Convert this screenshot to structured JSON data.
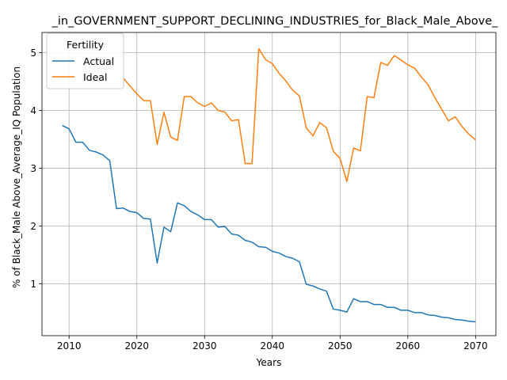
{
  "chart_data": {
    "type": "line",
    "title": "_in_GOVERNMENT_SUPPORT_DECLINING_INDUSTRIES_for_Black_Male_Above_",
    "xlabel": "Years",
    "ylabel": "% of Black_Male Above_Average_IQ Population",
    "xlim": [
      2006,
      2073
    ],
    "ylim": [
      0.1,
      5.35
    ],
    "xticks": [
      2010,
      2020,
      2030,
      2040,
      2050,
      2060,
      2070
    ],
    "yticks": [
      1,
      2,
      3,
      4,
      5
    ],
    "grid": true,
    "legend": {
      "title": "Fertility",
      "placement": "top-left"
    },
    "x": [
      2009,
      2010,
      2011,
      2012,
      2013,
      2014,
      2015,
      2016,
      2017,
      2018,
      2019,
      2020,
      2021,
      2022,
      2023,
      2024,
      2025,
      2026,
      2027,
      2028,
      2029,
      2030,
      2031,
      2032,
      2033,
      2034,
      2035,
      2036,
      2037,
      2038,
      2039,
      2040,
      2041,
      2042,
      2043,
      2044,
      2045,
      2046,
      2047,
      2048,
      2049,
      2050,
      2051,
      2052,
      2053,
      2054,
      2055,
      2056,
      2057,
      2058,
      2059,
      2060,
      2061,
      2062,
      2063,
      2064,
      2065,
      2066,
      2067,
      2068,
      2069,
      2070
    ],
    "series": [
      {
        "name": "Actual",
        "color": "#1f77b4",
        "values": [
          3.74,
          3.68,
          3.45,
          3.45,
          3.31,
          3.28,
          3.23,
          3.13,
          2.3,
          2.31,
          2.25,
          2.23,
          2.13,
          2.12,
          1.36,
          1.98,
          1.9,
          2.4,
          2.35,
          2.25,
          2.19,
          2.11,
          2.11,
          1.98,
          1.99,
          1.86,
          1.84,
          1.75,
          1.72,
          1.64,
          1.63,
          1.56,
          1.53,
          1.47,
          1.44,
          1.38,
          0.99,
          0.96,
          0.91,
          0.87,
          0.56,
          0.54,
          0.51,
          0.74,
          0.69,
          0.69,
          0.64,
          0.64,
          0.59,
          0.59,
          0.54,
          0.54,
          0.5,
          0.5,
          0.46,
          0.45,
          0.42,
          0.41,
          0.38,
          0.37,
          0.35,
          0.34
        ]
      },
      {
        "name": "Ideal",
        "color": "#ff7f0e",
        "values": [
          null,
          null,
          null,
          null,
          null,
          null,
          null,
          null,
          null,
          4.56,
          4.42,
          4.29,
          4.17,
          4.17,
          3.41,
          3.97,
          3.54,
          3.48,
          4.24,
          4.24,
          4.13,
          4.07,
          4.13,
          4.0,
          3.97,
          3.82,
          3.84,
          3.08,
          3.08,
          5.07,
          4.88,
          4.81,
          4.64,
          4.51,
          4.35,
          4.25,
          3.7,
          3.56,
          3.79,
          3.7,
          3.29,
          3.17,
          2.77,
          3.35,
          3.3,
          4.24,
          4.22,
          4.83,
          4.78,
          4.95,
          4.87,
          4.79,
          4.73,
          4.58,
          4.44,
          4.22,
          4.02,
          3.82,
          3.89,
          3.72,
          3.59,
          3.49
        ]
      }
    ]
  }
}
